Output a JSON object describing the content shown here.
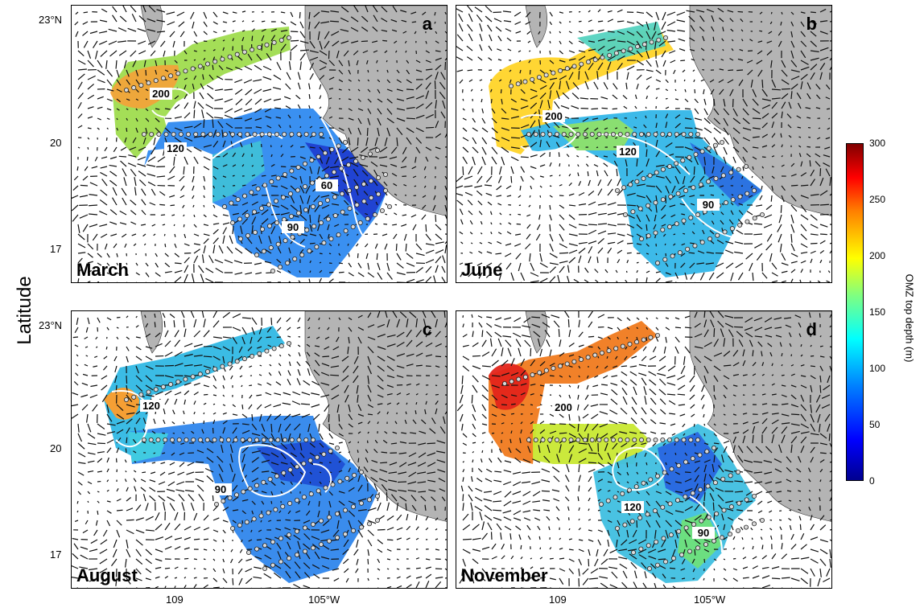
{
  "axis": {
    "ylabel": "Latitude",
    "lat_ticks": [
      "23°N",
      "20",
      "17"
    ],
    "lon_ticks": [
      "109",
      "105°W"
    ]
  },
  "colorbar": {
    "label": "OMZ top depth (m)",
    "ticks": [
      "300",
      "250",
      "200",
      "150",
      "100",
      "50",
      "0"
    ],
    "range": [
      0,
      300
    ]
  },
  "panels": [
    {
      "letter": "a",
      "month": "March",
      "contours": [
        "200",
        "120",
        "60",
        "90"
      ]
    },
    {
      "letter": "b",
      "month": "June",
      "contours": [
        "200",
        "120",
        "90"
      ]
    },
    {
      "letter": "c",
      "month": "August",
      "contours": [
        "120",
        "90"
      ]
    },
    {
      "letter": "d",
      "month": "November",
      "contours": [
        "200",
        "120",
        "90"
      ]
    }
  ],
  "colors": {
    "land": "#b4b4b4",
    "vectors": "#111111",
    "contour": "#ffffff",
    "station": "#d9d9d9"
  }
}
